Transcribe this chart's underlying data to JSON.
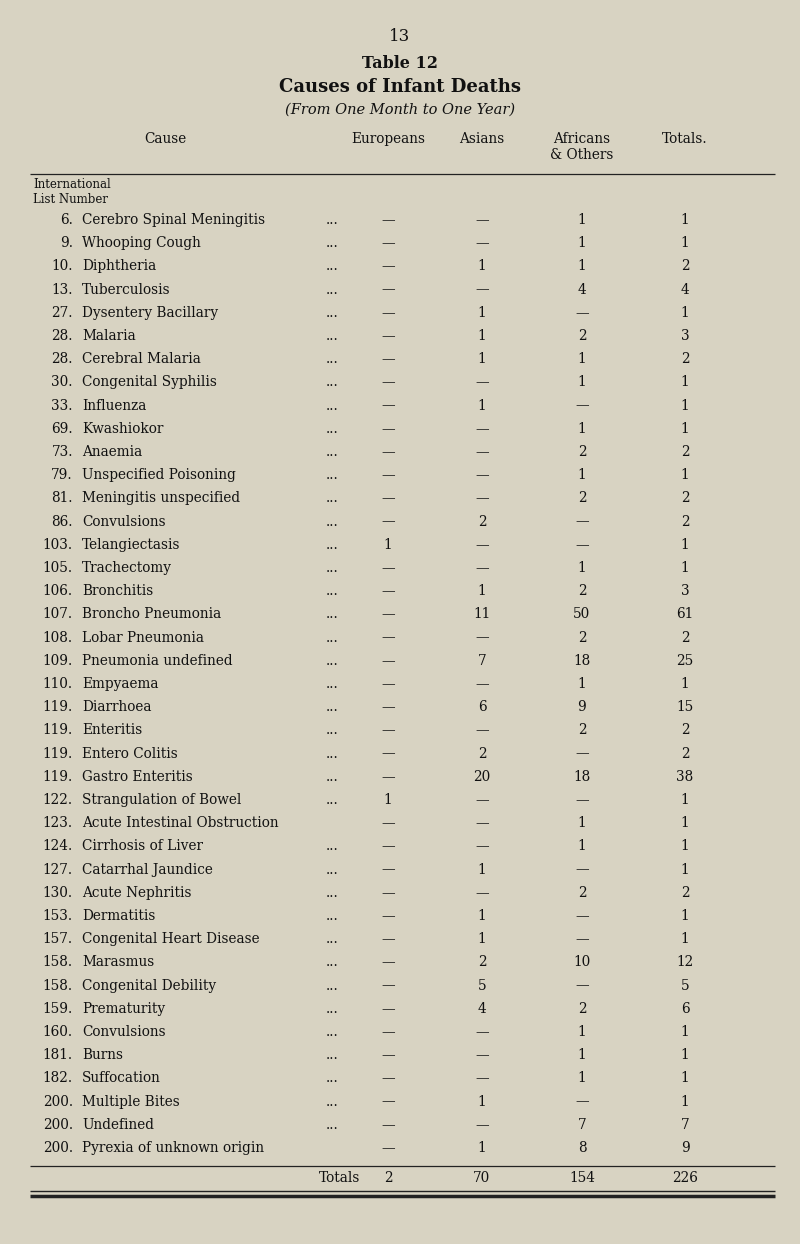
{
  "page_number": "13",
  "title1": "Table 12",
  "title2": "Causes of Infant Deaths",
  "title3": "(From One Month to One Year)",
  "subheader1": "International",
  "subheader2": "List Number",
  "col_header_cause": "Cause",
  "col_header_eur": "Europeans",
  "col_header_asi": "Asians",
  "col_header_afr1": "Africans",
  "col_header_afr2": "& Others",
  "col_header_tot": "Totals.",
  "rows": [
    {
      "num": "6.",
      "cause": "Cerebro Spinal Meningitis",
      "dots": true,
      "eur": "—",
      "asi": "—",
      "afr": "1",
      "tot": "1"
    },
    {
      "num": "9.",
      "cause": "Whooping Cough",
      "dots": true,
      "eur": "—",
      "asi": "—",
      "afr": "1",
      "tot": "1"
    },
    {
      "num": "10.",
      "cause": "Diphtheria",
      "dots": true,
      "eur": "—",
      "asi": "1",
      "afr": "1",
      "tot": "2"
    },
    {
      "num": "13.",
      "cause": "Tuberculosis",
      "dots": true,
      "eur": "—",
      "asi": "—",
      "afr": "4",
      "tot": "4"
    },
    {
      "num": "27.",
      "cause": "Dysentery Bacillary",
      "dots": true,
      "eur": "—",
      "asi": "1",
      "afr": "—",
      "tot": "1"
    },
    {
      "num": "28.",
      "cause": "Malaria",
      "dots": true,
      "eur": "—",
      "asi": "1",
      "afr": "2",
      "tot": "3"
    },
    {
      "num": "28.",
      "cause": "Cerebral Malaria",
      "dots": true,
      "eur": "—",
      "asi": "1",
      "afr": "1",
      "tot": "2"
    },
    {
      "num": "30.",
      "cause": "Congenital Syphilis",
      "dots": true,
      "eur": "—",
      "asi": "—",
      "afr": "1",
      "tot": "1"
    },
    {
      "num": "33.",
      "cause": "Influenza",
      "dots": true,
      "eur": "—",
      "asi": "1",
      "afr": "—",
      "tot": "1"
    },
    {
      "num": "69.",
      "cause": "Kwashiokor",
      "dots": true,
      "eur": "—",
      "asi": "—",
      "afr": "1",
      "tot": "1"
    },
    {
      "num": "73.",
      "cause": "Anaemia",
      "dots": true,
      "eur": "—",
      "asi": "—",
      "afr": "2",
      "tot": "2"
    },
    {
      "num": "79.",
      "cause": "Unspecified Poisoning",
      "dots": true,
      "eur": "—",
      "asi": "—",
      "afr": "1",
      "tot": "1"
    },
    {
      "num": "81.",
      "cause": "Meningitis unspecified",
      "dots": true,
      "eur": "—",
      "asi": "—",
      "afr": "2",
      "tot": "2"
    },
    {
      "num": "86.",
      "cause": "Convulsions",
      "dots": true,
      "eur": "—",
      "asi": "2",
      "afr": "—",
      "tot": "2"
    },
    {
      "num": "103.",
      "cause": "Telangiectasis",
      "dots": true,
      "eur": "1",
      "asi": "—",
      "afr": "—",
      "tot": "1"
    },
    {
      "num": "105.",
      "cause": "Trachectomy",
      "dots": true,
      "eur": "—",
      "asi": "—",
      "afr": "1",
      "tot": "1"
    },
    {
      "num": "106.",
      "cause": "Bronchitis",
      "dots": true,
      "eur": "—",
      "asi": "1",
      "afr": "2",
      "tot": "3"
    },
    {
      "num": "107.",
      "cause": "Broncho Pneumonia",
      "dots": true,
      "eur": "—",
      "asi": "11",
      "afr": "50",
      "tot": "61"
    },
    {
      "num": "108.",
      "cause": "Lobar Pneumonia",
      "dots": true,
      "eur": "—",
      "asi": "—",
      "afr": "2",
      "tot": "2"
    },
    {
      "num": "109.",
      "cause": "Pneumonia undefined",
      "dots": true,
      "eur": "—",
      "asi": "7",
      "afr": "18",
      "tot": "25"
    },
    {
      "num": "110.",
      "cause": "Empyaema",
      "dots": true,
      "eur": "—",
      "asi": "—",
      "afr": "1",
      "tot": "1"
    },
    {
      "num": "119.",
      "cause": "Diarrhoea",
      "dots": true,
      "eur": "—",
      "asi": "6",
      "afr": "9",
      "tot": "15"
    },
    {
      "num": "119.",
      "cause": "Enteritis",
      "dots": true,
      "eur": "—",
      "asi": "—",
      "afr": "2",
      "tot": "2"
    },
    {
      "num": "119.",
      "cause": "Entero Colitis",
      "dots": true,
      "eur": "—",
      "asi": "2",
      "afr": "—",
      "tot": "2"
    },
    {
      "num": "119.",
      "cause": "Gastro Enteritis",
      "dots": true,
      "eur": "—",
      "asi": "20",
      "afr": "18",
      "tot": "38"
    },
    {
      "num": "122.",
      "cause": "Strangulation of Bowel",
      "dots": true,
      "eur": "1",
      "asi": "—",
      "afr": "—",
      "tot": "1"
    },
    {
      "num": "123.",
      "cause": "Acute Intestinal Obstruction",
      "dots": false,
      "eur": "—",
      "asi": "—",
      "afr": "1",
      "tot": "1"
    },
    {
      "num": "124.",
      "cause": "Cirrhosis of Liver",
      "dots": true,
      "eur": "—",
      "asi": "—",
      "afr": "1",
      "tot": "1"
    },
    {
      "num": "127.",
      "cause": "Catarrhal Jaundice",
      "dots": true,
      "eur": "—",
      "asi": "1",
      "afr": "—",
      "tot": "1"
    },
    {
      "num": "130.",
      "cause": "Acute Nephritis",
      "dots": true,
      "eur": "—",
      "asi": "—",
      "afr": "2",
      "tot": "2"
    },
    {
      "num": "153.",
      "cause": "Dermatitis",
      "dots": true,
      "eur": "—",
      "asi": "1",
      "afr": "—",
      "tot": "1"
    },
    {
      "num": "157.",
      "cause": "Congenital Heart Disease",
      "dots": true,
      "eur": "—",
      "asi": "1",
      "afr": "—",
      "tot": "1"
    },
    {
      "num": "158.",
      "cause": "Marasmus",
      "dots": true,
      "eur": "—",
      "asi": "2",
      "afr": "10",
      "tot": "12"
    },
    {
      "num": "158.",
      "cause": "Congenital Debility",
      "dots": true,
      "eur": "—",
      "asi": "5",
      "afr": "—",
      "tot": "5"
    },
    {
      "num": "159.",
      "cause": "Prematurity",
      "dots": true,
      "eur": "—",
      "asi": "4",
      "afr": "2",
      "tot": "6"
    },
    {
      "num": "160.",
      "cause": "Convulsions",
      "dots": true,
      "eur": "—",
      "asi": "—",
      "afr": "1",
      "tot": "1"
    },
    {
      "num": "181.",
      "cause": "Burns",
      "dots": true,
      "eur": "—",
      "asi": "—",
      "afr": "1",
      "tot": "1"
    },
    {
      "num": "182.",
      "cause": "Suffocation",
      "dots": true,
      "eur": "—",
      "asi": "—",
      "afr": "1",
      "tot": "1"
    },
    {
      "num": "200.",
      "cause": "Multiple Bites",
      "dots": true,
      "eur": "—",
      "asi": "1",
      "afr": "—",
      "tot": "1"
    },
    {
      "num": "200.",
      "cause": "Undefined",
      "dots": true,
      "eur": "—",
      "asi": "—",
      "afr": "7",
      "tot": "7"
    },
    {
      "num": "200.",
      "cause": "Pyrexia of unknown origin",
      "dots": false,
      "eur": "—",
      "asi": "1",
      "afr": "8",
      "tot": "9"
    }
  ],
  "totals": [
    "Totals",
    "2",
    "70",
    "154",
    "226"
  ],
  "bg_color": "#d8d3c2",
  "text_color": "#111111",
  "font_size": 9.8,
  "small_font_size": 8.5,
  "title_font_size": 11.5,
  "subtitle_font_size": 13.0,
  "italic_font_size": 10.5
}
